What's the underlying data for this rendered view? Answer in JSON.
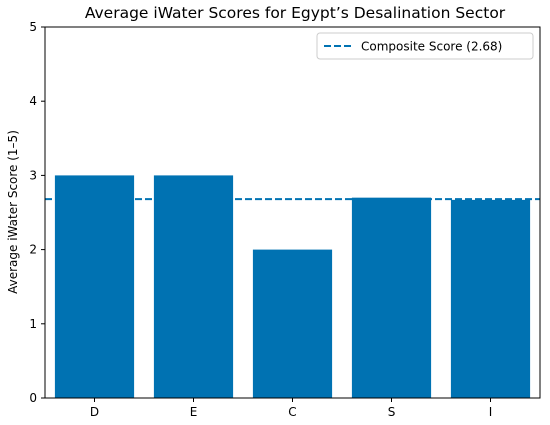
{
  "chart_data": {
    "type": "bar",
    "title": "Average iWater Scores for Egypt’s Desalination Sector",
    "xlabel": "",
    "ylabel": "Average iWater Score (1–5)",
    "categories": [
      "D",
      "E",
      "C",
      "S",
      "I"
    ],
    "values": [
      3.0,
      3.0,
      2.0,
      2.7,
      2.67
    ],
    "ylim": [
      0,
      5
    ],
    "yticks": [
      "0",
      "1",
      "2",
      "3",
      "4",
      "5"
    ],
    "bar_color": "#0072b2",
    "reference_line": {
      "label": "Composite Score (2.68)",
      "value": 2.68,
      "color": "#0072b2",
      "style": "dashed"
    },
    "legend_position": "top-right",
    "grid": false
  }
}
